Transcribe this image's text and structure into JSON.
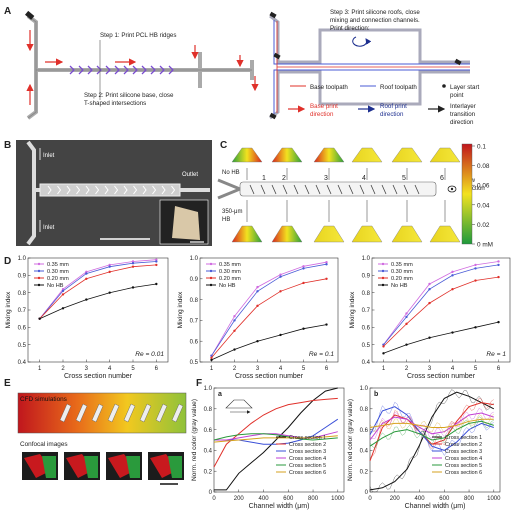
{
  "panel_letters": [
    "A",
    "B",
    "C",
    "D",
    "E",
    "F"
  ],
  "panel_a": {
    "step1": "Step 1: Print PCL HB ridges",
    "step2": [
      "Step 2: Print silicone base, close",
      "T-shaped intersections"
    ],
    "step3": [
      "Step 3: Print silicone roofs, close",
      "mixing and connection channels.",
      "Print direction:"
    ],
    "legend": {
      "base_toolpath": "Base toolpath",
      "roof_toolpath": "Roof toolpath",
      "layer_start": [
        "Layer start",
        "point"
      ],
      "base_dir": [
        "Base print",
        "direction"
      ],
      "roof_dir": [
        "Roof print",
        "direction"
      ],
      "interlayer": [
        "Interlayer",
        "transition",
        "direction"
      ]
    }
  },
  "panel_b": {
    "inlet_top": "Inlet",
    "inlet_bottom": "Inlet",
    "outlet": "Outlet"
  },
  "panel_c": {
    "no_hb": "No HB",
    "hb": [
      "350-μm",
      "HB"
    ],
    "view": [
      "View",
      "direction"
    ],
    "sections": [
      "1",
      "2",
      "3",
      "4",
      "5",
      "6"
    ],
    "colorbar_ticks": [
      "0.1",
      "0.08",
      "0.06",
      "0.04",
      "0.02",
      "0 mM"
    ],
    "colors": {
      "high": "#c0161d",
      "mid": "#f2e21f",
      "low": "#1e9a3c"
    }
  },
  "panel_e": {
    "cfd": "CFD simulations",
    "confocal": "Confocal images"
  },
  "panel_f": {
    "sub_a": "a",
    "sub_b": "b",
    "legend": [
      "Cross section 1",
      "Cross section 2",
      "Cross section 3",
      "Cross section 4",
      "Cross section 5",
      "Cross section 6"
    ]
  },
  "chart_data": [
    {
      "type": "line",
      "panel": "D-left",
      "xlabel": "Cross section number",
      "ylabel": "Mixing index",
      "annotation": "Re = 0.01",
      "x": [
        1,
        2,
        3,
        4,
        5,
        6
      ],
      "xlim": [
        0.5,
        6.5
      ],
      "ylim": [
        0.4,
        1.0
      ],
      "yticks": [
        "0.4",
        "0.5",
        "0.6",
        "0.7",
        "0.8",
        "0.9",
        "1.0"
      ],
      "series": [
        {
          "name": "0.35 mm",
          "color": "#d06be0",
          "values": [
            0.65,
            0.82,
            0.92,
            0.96,
            0.98,
            0.99
          ]
        },
        {
          "name": "0.30 mm",
          "color": "#4a5bd6",
          "values": [
            0.65,
            0.81,
            0.91,
            0.95,
            0.97,
            0.98
          ]
        },
        {
          "name": "0.20 mm",
          "color": "#e0302a",
          "values": [
            0.65,
            0.79,
            0.88,
            0.92,
            0.95,
            0.96
          ]
        },
        {
          "name": "No HB",
          "color": "#111111",
          "values": [
            0.65,
            0.71,
            0.76,
            0.8,
            0.83,
            0.85
          ]
        }
      ]
    },
    {
      "type": "line",
      "panel": "D-middle",
      "xlabel": "Cross section number",
      "ylabel": "Mixing index",
      "annotation": "Re = 0.1",
      "x": [
        1,
        2,
        3,
        4,
        5,
        6
      ],
      "xlim": [
        0.5,
        6.5
      ],
      "ylim": [
        0.5,
        1.0
      ],
      "yticks": [
        "0.5",
        "0.6",
        "0.7",
        "0.8",
        "0.9",
        "1.0"
      ],
      "series": [
        {
          "name": "0.35 mm",
          "color": "#d06be0",
          "values": [
            0.53,
            0.72,
            0.86,
            0.92,
            0.96,
            0.98
          ]
        },
        {
          "name": "0.30 mm",
          "color": "#4a5bd6",
          "values": [
            0.53,
            0.7,
            0.84,
            0.91,
            0.95,
            0.97
          ]
        },
        {
          "name": "0.20 mm",
          "color": "#e0302a",
          "values": [
            0.52,
            0.65,
            0.77,
            0.84,
            0.88,
            0.9
          ]
        },
        {
          "name": "No HB",
          "color": "#111111",
          "values": [
            0.51,
            0.56,
            0.6,
            0.63,
            0.66,
            0.68
          ]
        }
      ]
    },
    {
      "type": "line",
      "panel": "D-right",
      "xlabel": "Cross section number",
      "ylabel": "Mixing index",
      "annotation": "Re = 1",
      "x": [
        1,
        2,
        3,
        4,
        5,
        6
      ],
      "xlim": [
        0.5,
        6.5
      ],
      "ylim": [
        0.4,
        1.0
      ],
      "yticks": [
        "0.4",
        "0.5",
        "0.6",
        "0.7",
        "0.8",
        "0.9",
        "1.0"
      ],
      "series": [
        {
          "name": "0.35 mm",
          "color": "#d06be0",
          "values": [
            0.5,
            0.68,
            0.85,
            0.92,
            0.96,
            0.98
          ]
        },
        {
          "name": "0.30 mm",
          "color": "#4a5bd6",
          "values": [
            0.5,
            0.66,
            0.82,
            0.9,
            0.94,
            0.96
          ]
        },
        {
          "name": "0.20 mm",
          "color": "#e0302a",
          "values": [
            0.49,
            0.62,
            0.74,
            0.82,
            0.87,
            0.89
          ]
        },
        {
          "name": "No HB",
          "color": "#111111",
          "values": [
            0.45,
            0.5,
            0.54,
            0.57,
            0.6,
            0.63
          ]
        }
      ]
    },
    {
      "type": "line",
      "panel": "F-a",
      "xlabel": "Channel width (μm)",
      "ylabel": "Norm. red color (gray value)",
      "x": [
        0,
        100,
        200,
        300,
        400,
        500,
        600,
        700,
        800,
        900,
        1000
      ],
      "xlim": [
        0,
        1050
      ],
      "ylim": [
        0,
        1.0
      ],
      "xticks": [
        "0",
        "200",
        "400",
        "600",
        "800",
        "1000"
      ],
      "yticks": [
        "0",
        "0.2",
        "0.4",
        "0.6",
        "0.8",
        "1.0"
      ],
      "series": [
        {
          "name": "Cross section 1",
          "color": "#111111",
          "values": [
            0.02,
            0.02,
            0.18,
            0.28,
            0.38,
            0.5,
            0.62,
            0.76,
            0.88,
            0.97,
            1.0
          ]
        },
        {
          "name": "Cross section 2",
          "color": "#e0302a",
          "values": [
            0.24,
            0.46,
            0.56,
            0.66,
            0.74,
            0.8,
            0.84,
            0.86,
            0.88,
            0.89,
            0.9
          ]
        },
        {
          "name": "Cross section 3",
          "color": "#3a4fd8",
          "values": [
            0.5,
            0.5,
            0.5,
            0.48,
            0.46,
            0.46,
            0.47,
            0.5,
            0.54,
            0.62,
            0.7
          ]
        },
        {
          "name": "Cross section 4",
          "color": "#c23fd4",
          "values": [
            0.5,
            0.5,
            0.52,
            0.54,
            0.56,
            0.56,
            0.54,
            0.52,
            0.52,
            0.55,
            0.58
          ]
        },
        {
          "name": "Cross section 5",
          "color": "#2a9a3c",
          "values": [
            0.5,
            0.53,
            0.55,
            0.56,
            0.56,
            0.55,
            0.53,
            0.51,
            0.5,
            0.51,
            0.52
          ]
        },
        {
          "name": "Cross section 6",
          "color": "#d6a21f",
          "values": [
            0.48,
            0.49,
            0.5,
            0.51,
            0.52,
            0.52,
            0.52,
            0.52,
            0.52,
            0.53,
            0.54
          ]
        }
      ]
    },
    {
      "type": "line",
      "panel": "F-b",
      "xlabel": "Channel width (μm)",
      "ylabel": "Norm. red color (gray value)",
      "x": [
        0,
        100,
        200,
        300,
        400,
        500,
        600,
        700,
        800,
        900,
        1000
      ],
      "xlim": [
        0,
        1050
      ],
      "ylim": [
        0,
        1.0
      ],
      "xticks": [
        "0",
        "200",
        "400",
        "600",
        "800",
        "1000"
      ],
      "yticks": [
        "0",
        "0.2",
        "0.4",
        "0.6",
        "0.8",
        "1.0"
      ],
      "series": [
        {
          "name": "Cross section 1",
          "color": "#111111",
          "values": [
            0.02,
            0.04,
            0.1,
            0.22,
            0.45,
            0.72,
            0.9,
            0.96,
            0.92,
            0.86,
            0.8
          ]
        },
        {
          "name": "Cross section 2",
          "color": "#e0302a",
          "values": [
            0.3,
            0.62,
            0.74,
            0.7,
            0.58,
            0.46,
            0.5,
            0.68,
            0.82,
            0.86,
            0.84
          ]
        },
        {
          "name": "Cross section 3",
          "color": "#3a4fd8",
          "values": [
            0.55,
            0.78,
            0.82,
            0.74,
            0.58,
            0.44,
            0.4,
            0.48,
            0.6,
            0.66,
            0.62
          ]
        },
        {
          "name": "Cross section 4",
          "color": "#c23fd4",
          "values": [
            0.5,
            0.66,
            0.72,
            0.7,
            0.62,
            0.56,
            0.58,
            0.66,
            0.74,
            0.76,
            0.72
          ]
        },
        {
          "name": "Cross section 5",
          "color": "#2a9a3c",
          "values": [
            0.44,
            0.52,
            0.58,
            0.6,
            0.56,
            0.5,
            0.52,
            0.6,
            0.66,
            0.68,
            0.64
          ]
        },
        {
          "name": "Cross section 6",
          "color": "#d6a21f",
          "values": [
            0.62,
            0.64,
            0.66,
            0.66,
            0.64,
            0.62,
            0.62,
            0.64,
            0.68,
            0.7,
            0.7
          ]
        }
      ]
    }
  ]
}
